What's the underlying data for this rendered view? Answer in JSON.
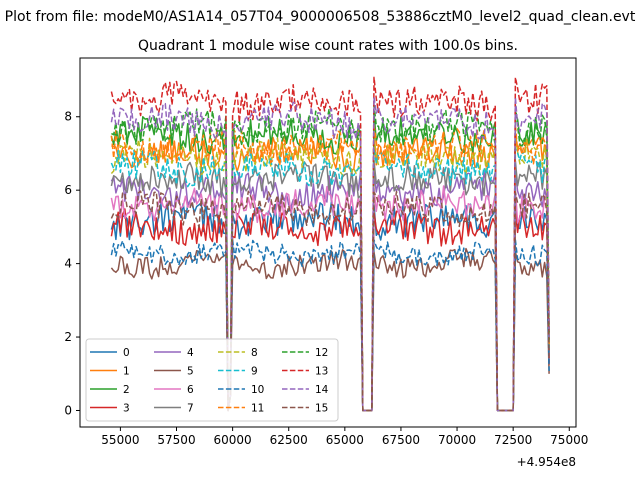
{
  "chart_data": {
    "type": "line",
    "suptitle": "Plot from file: modeM0/AS1A14_057T04_9000006508_53886cztM0_level2_quad_clean.evt",
    "title": "Quadrant 1 module wise count rates with 100.0s bins.",
    "xlabel": "",
    "ylabel": "",
    "x_offset_label": "+4.954e8",
    "xlim": [
      53200,
      75300
    ],
    "ylim": [
      -0.45,
      9.6
    ],
    "xticks": [
      55000,
      57500,
      60000,
      62500,
      65000,
      67500,
      70000,
      72500,
      75000
    ],
    "xtick_labels": [
      "55000",
      "57500",
      "60000",
      "62500",
      "65000",
      "67500",
      "70000",
      "72500",
      "75000"
    ],
    "yticks": [
      0,
      2,
      4,
      6,
      8
    ],
    "ytick_labels": [
      "0",
      "2",
      "4",
      "6",
      "8"
    ],
    "x_range": [
      54600,
      74100
    ],
    "bin_width": 100,
    "gaps": [
      {
        "start": 59700,
        "end": 60000,
        "dip": [
          59750,
          59800,
          59850,
          59900
        ],
        "dip_values": [
          0.3,
          0.0,
          0.0,
          0.4
        ]
      },
      {
        "start": 65700,
        "end": 66400,
        "zero": [
          65800,
          66200
        ]
      },
      {
        "start": 71700,
        "end": 72600,
        "zero": [
          71800,
          72500
        ]
      }
    ],
    "legend": {
      "position": "lower-left",
      "ncol": 4
    },
    "series": [
      {
        "name": "0",
        "mean": 5.2,
        "amplitude": 0.45,
        "color": "#1f77b4",
        "style": "solid"
      },
      {
        "name": "1",
        "mean": 7.0,
        "amplitude": 0.4,
        "color": "#ff7f0e",
        "style": "solid"
      },
      {
        "name": "2",
        "mean": 7.5,
        "amplitude": 0.4,
        "color": "#2ca02c",
        "style": "solid"
      },
      {
        "name": "3",
        "mean": 5.0,
        "amplitude": 0.4,
        "color": "#d62728",
        "style": "solid"
      },
      {
        "name": "4",
        "mean": 6.0,
        "amplitude": 0.4,
        "color": "#9467bd",
        "style": "solid"
      },
      {
        "name": "5",
        "mean": 4.0,
        "amplitude": 0.3,
        "color": "#8c564b",
        "style": "solid"
      },
      {
        "name": "6",
        "mean": 5.6,
        "amplitude": 0.4,
        "color": "#e377c2",
        "style": "solid"
      },
      {
        "name": "7",
        "mean": 6.3,
        "amplitude": 0.4,
        "color": "#7f7f7f",
        "style": "solid"
      },
      {
        "name": "8",
        "mean": 6.9,
        "amplitude": 0.4,
        "color": "#bcbd22",
        "style": "dashed"
      },
      {
        "name": "9",
        "mean": 6.6,
        "amplitude": 0.4,
        "color": "#17becf",
        "style": "dashed"
      },
      {
        "name": "10",
        "mean": 4.3,
        "amplitude": 0.3,
        "color": "#1f77b4",
        "style": "dashed"
      },
      {
        "name": "11",
        "mean": 7.2,
        "amplitude": 0.4,
        "color": "#ff7f0e",
        "style": "dashed"
      },
      {
        "name": "12",
        "mean": 7.7,
        "amplitude": 0.4,
        "color": "#2ca02c",
        "style": "dashed"
      },
      {
        "name": "13",
        "mean": 8.4,
        "amplitude": 0.45,
        "color": "#d62728",
        "style": "dashed"
      },
      {
        "name": "14",
        "mean": 7.9,
        "amplitude": 0.4,
        "color": "#9467bd",
        "style": "dashed"
      },
      {
        "name": "15",
        "mean": 5.5,
        "amplitude": 0.4,
        "color": "#8c564b",
        "style": "dashed"
      }
    ]
  }
}
